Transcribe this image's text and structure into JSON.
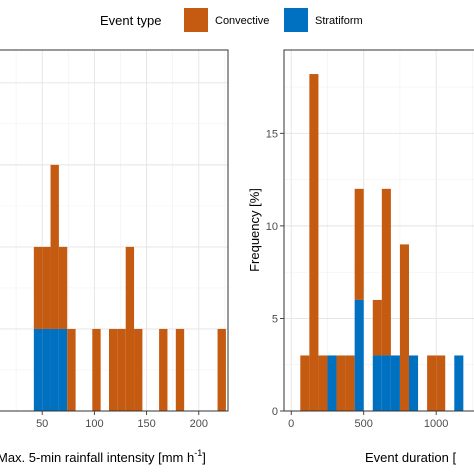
{
  "legend": {
    "title": "Event type",
    "items": [
      {
        "label": "Convective",
        "color": "#C55A11"
      },
      {
        "label": "Stratiform",
        "color": "#0070C0"
      }
    ]
  },
  "chart_data": [
    {
      "type": "bar",
      "stacked": true,
      "xlabel": "Max. 5-min rainfall intensity [mm h",
      "xlabel_sup": "-1",
      "xlabel_end": "]",
      "ylabel": "",
      "xlim": [
        0,
        228
      ],
      "ylim": [
        0,
        22
      ],
      "x_ticks": [
        50,
        100,
        150,
        200
      ],
      "y_ticks": [],
      "bin_width": 8,
      "bars": [
        {
          "x0": 42,
          "x1": 50,
          "stratiform": 5,
          "convective": 5
        },
        {
          "x0": 50,
          "x1": 58,
          "stratiform": 5,
          "convective": 5
        },
        {
          "x0": 58,
          "x1": 66,
          "stratiform": 5,
          "convective": 10
        },
        {
          "x0": 66,
          "x1": 74,
          "stratiform": 5,
          "convective": 5
        },
        {
          "x0": 74,
          "x1": 82,
          "stratiform": 0,
          "convective": 5
        },
        {
          "x0": 98,
          "x1": 106,
          "stratiform": 0,
          "convective": 5
        },
        {
          "x0": 114,
          "x1": 122,
          "stratiform": 0,
          "convective": 5
        },
        {
          "x0": 122,
          "x1": 130,
          "stratiform": 0,
          "convective": 5
        },
        {
          "x0": 130,
          "x1": 138,
          "stratiform": 0,
          "convective": 10
        },
        {
          "x0": 138,
          "x1": 146,
          "stratiform": 0,
          "convective": 5
        },
        {
          "x0": 162,
          "x1": 170,
          "stratiform": 0,
          "convective": 5
        },
        {
          "x0": 178,
          "x1": 186,
          "stratiform": 0,
          "convective": 5
        },
        {
          "x0": 218,
          "x1": 226,
          "stratiform": 0,
          "convective": 5
        }
      ]
    },
    {
      "type": "bar",
      "stacked": true,
      "xlabel": "Event duration [",
      "ylabel": "Frequency [%]",
      "xlim": [
        -50,
        1330
      ],
      "ylim": [
        0,
        19.5
      ],
      "x_ticks": [
        0,
        500,
        1000
      ],
      "y_ticks": [
        0,
        5,
        10,
        15
      ],
      "bin_width": 62.5,
      "bars": [
        {
          "x0": 62.5,
          "x1": 125,
          "stratiform": 0,
          "convective": 3
        },
        {
          "x0": 125,
          "x1": 187.5,
          "stratiform": 0,
          "convective": 18.2
        },
        {
          "x0": 187.5,
          "x1": 250,
          "stratiform": 0,
          "convective": 3
        },
        {
          "x0": 250,
          "x1": 312.5,
          "stratiform": 3,
          "convective": 0
        },
        {
          "x0": 312.5,
          "x1": 375,
          "stratiform": 0,
          "convective": 3
        },
        {
          "x0": 375,
          "x1": 437.5,
          "stratiform": 0,
          "convective": 3
        },
        {
          "x0": 437.5,
          "x1": 500,
          "stratiform": 6,
          "convective": 6
        },
        {
          "x0": 500,
          "x1": 562.5,
          "stratiform": 0,
          "convective": 0
        },
        {
          "x0": 562.5,
          "x1": 625,
          "stratiform": 3,
          "convective": 3
        },
        {
          "x0": 625,
          "x1": 687.5,
          "stratiform": 3,
          "convective": 9
        },
        {
          "x0": 687.5,
          "x1": 750,
          "stratiform": 3,
          "convective": 0
        },
        {
          "x0": 750,
          "x1": 812.5,
          "stratiform": 0,
          "convective": 9
        },
        {
          "x0": 812.5,
          "x1": 875,
          "stratiform": 3,
          "convective": 0
        },
        {
          "x0": 875,
          "x1": 937.5,
          "stratiform": 0,
          "convective": 0
        },
        {
          "x0": 937.5,
          "x1": 1000,
          "stratiform": 0,
          "convective": 3
        },
        {
          "x0": 1000,
          "x1": 1062.5,
          "stratiform": 0,
          "convective": 3
        },
        {
          "x0": 1062.5,
          "x1": 1125,
          "stratiform": 0,
          "convective": 0
        },
        {
          "x0": 1125,
          "x1": 1187.5,
          "stratiform": 3,
          "convective": 0
        }
      ]
    }
  ]
}
